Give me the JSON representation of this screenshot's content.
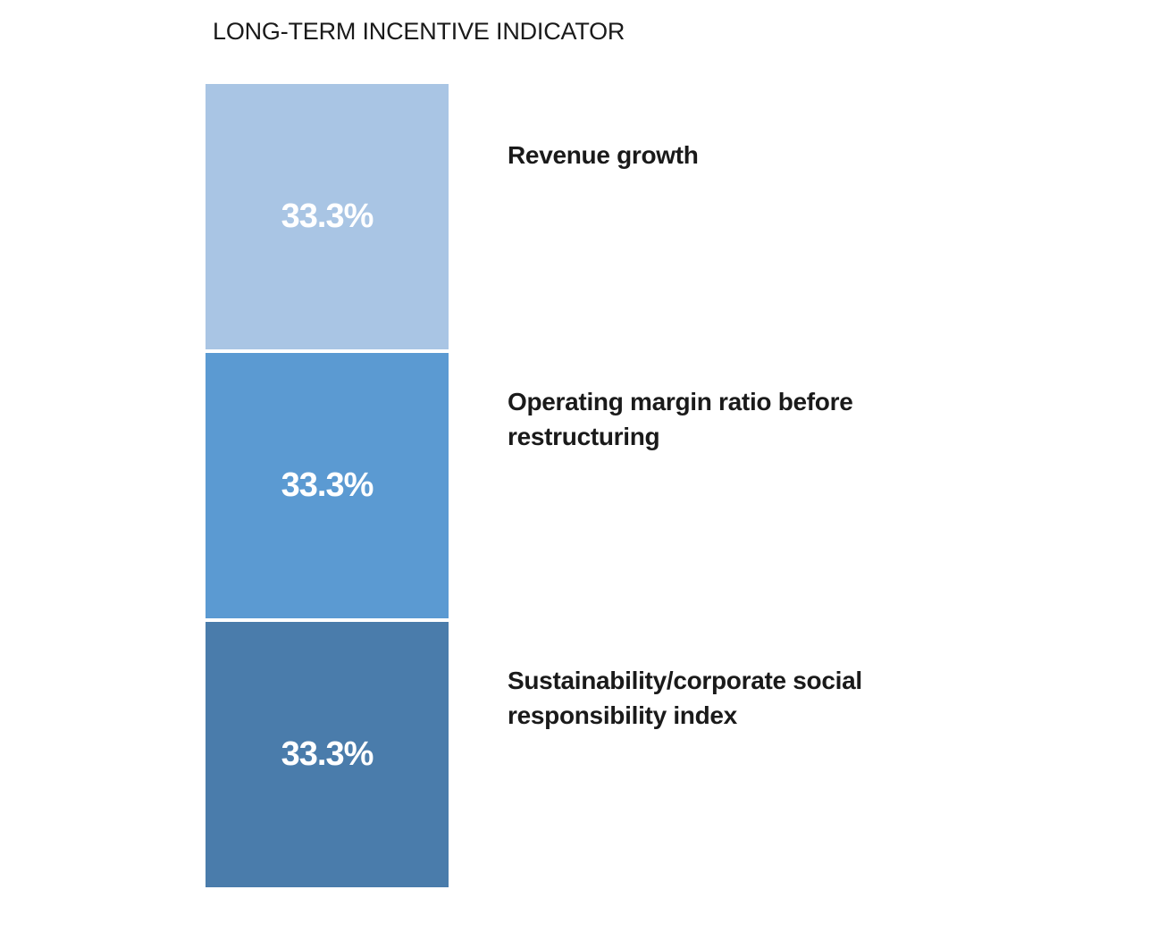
{
  "title": "LONG-TERM INCENTIVE INDICATOR",
  "colors": {
    "background": "#ffffff",
    "title_text": "#1a1a1a",
    "label_text": "#1a1a1a",
    "value_text": "#ffffff",
    "segment_light_blue": "#a9c5e4",
    "segment_medium_blue": "#5b9ad2",
    "segment_dark_blue": "#4a7cab"
  },
  "chart_data": {
    "type": "bar",
    "subtype": "stacked-single-column",
    "title": "LONG-TERM INCENTIVE INDICATOR",
    "categories": [
      "Revenue growth",
      "Operating margin ratio before restructuring",
      "Sustainability/corporate social responsibility index"
    ],
    "values": [
      33.3,
      33.3,
      33.3
    ],
    "value_labels": [
      "33.3%",
      "33.3%",
      "33.3%"
    ],
    "colors": [
      "#a9c5e4",
      "#5b9ad2",
      "#4a7cab"
    ],
    "grid": false,
    "axes_visible": false,
    "legend_position": "labels-right-of-segments"
  },
  "segments": [
    {
      "value_label": "33.3%",
      "category": "Revenue growth",
      "color": "#a9c5e4",
      "lines": [
        "Revenue growth"
      ]
    },
    {
      "value_label": "33.3%",
      "category": "Operating margin ratio before restructuring",
      "color": "#5b9ad2",
      "lines": [
        "Operating margin ratio before",
        "restructuring"
      ]
    },
    {
      "value_label": "33.3%",
      "category": "Sustainability/corporate social responsibility index",
      "color": "#4a7cab",
      "lines": [
        "Sustainability/corporate social",
        "responsibility index"
      ]
    }
  ]
}
